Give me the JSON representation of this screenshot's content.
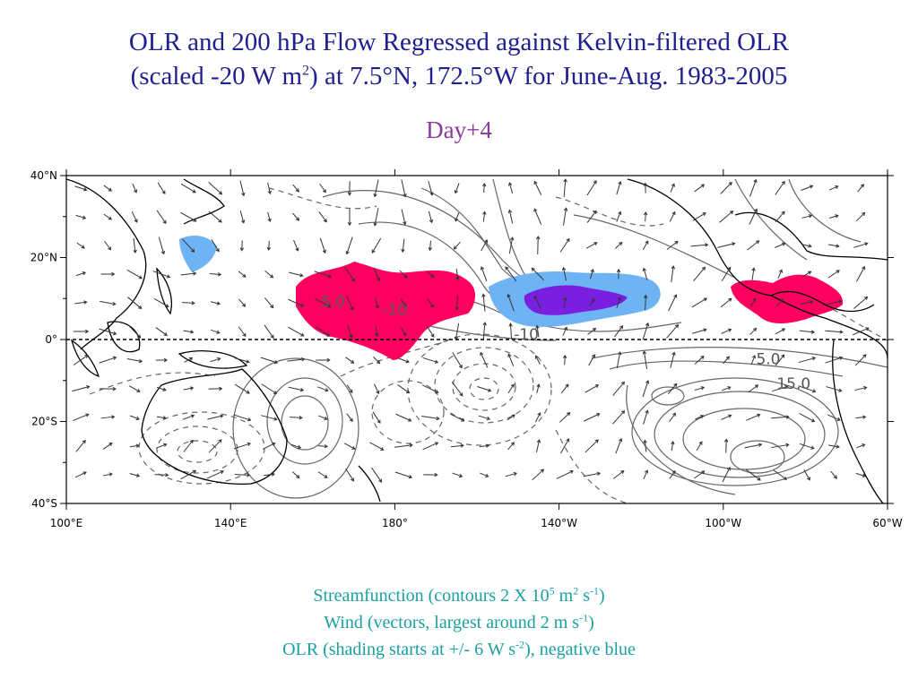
{
  "title": {
    "line1": "OLR and 200 hPa Flow Regressed against Kelvin-filtered OLR",
    "line2_pre": "(scaled -20 W m",
    "line2_sup": "2",
    "line2_post": ") at 7.5°N, 172.5°W for June-Aug. 1983-2005"
  },
  "subtitle": "Day+4",
  "map": {
    "lon_range": [
      100,
      300
    ],
    "lat_range": [
      -40,
      40
    ],
    "x_ticks": [
      {
        "lon": 100,
        "label": "100°E"
      },
      {
        "lon": 140,
        "label": "140°E"
      },
      {
        "lon": 180,
        "label": "180°"
      },
      {
        "lon": 220,
        "label": "140°W"
      },
      {
        "lon": 260,
        "label": "100°W"
      },
      {
        "lon": 300,
        "label": "60°W"
      }
    ],
    "y_ticks": [
      {
        "lat": 40,
        "label": "40°N"
      },
      {
        "lat": 20,
        "label": "20°N"
      },
      {
        "lat": 0,
        "label": "0°"
      },
      {
        "lat": -20,
        "label": "20°S"
      },
      {
        "lat": -40,
        "label": "40°S"
      }
    ],
    "contour_labels": [
      {
        "text": "5.0",
        "lon": 162,
        "lat": 8
      },
      {
        "text": "-10",
        "lon": 177,
        "lat": 6
      },
      {
        "text": "-10",
        "lon": 209,
        "lat": 0
      },
      {
        "text": "5.0",
        "lon": 268,
        "lat": -6
      },
      {
        "text": "15.0",
        "lon": 273,
        "lat": -12
      }
    ],
    "colors": {
      "positive_olr": "#ff0060",
      "negative_olr": "#6eb4f5",
      "strong_negative_olr": "#7a1fe0",
      "land": "#000000",
      "contour": "#555555"
    }
  },
  "caption": {
    "line1_pre": "Streamfunction (contours 2 X 10",
    "line1_sup1": "5",
    "line1_mid": " m",
    "line1_sup2": "2",
    "line1_mid2": " s",
    "line1_sup3": "-1",
    "line1_post": ")",
    "line2_pre": "Wind (vectors, largest around 2 m s",
    "line2_sup": "-1",
    "line2_post": ")",
    "line3_pre": "OLR (shading starts at +/- 6 W s",
    "line3_sup": "-2",
    "line3_post": "), negative blue"
  }
}
